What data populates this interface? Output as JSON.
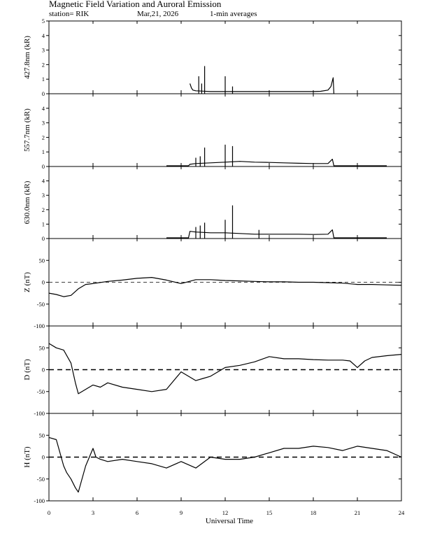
{
  "header": {
    "title": "Magnetic Field Variation and Auroral Emission",
    "station": "station= RIK",
    "date": "Mar,21, 2026",
    "averaging": "1-min averages"
  },
  "chart_data": [
    {
      "type": "line",
      "ylabel": "427.8nm (kR)",
      "ylim": [
        0,
        5
      ],
      "yticks": [
        "0",
        "1",
        "2",
        "3",
        "4",
        "5"
      ],
      "x": [
        9.6,
        9.7,
        9.8,
        10.0,
        10.5,
        11.0,
        12.0,
        13.0,
        14.0,
        15.0,
        16.0,
        17.0,
        18.0,
        18.5,
        19.0,
        19.2,
        19.35,
        19.4
      ],
      "values": [
        0.7,
        0.4,
        0.25,
        0.2,
        0.18,
        0.15,
        0.15,
        0.15,
        0.15,
        0.15,
        0.15,
        0.15,
        0.15,
        0.17,
        0.25,
        0.5,
        1.1,
        0.0
      ],
      "spikes": [
        [
          10.2,
          1.2
        ],
        [
          10.4,
          0.7
        ],
        [
          10.6,
          1.9
        ],
        [
          12.0,
          1.2
        ],
        [
          12.5,
          0.5
        ]
      ]
    },
    {
      "type": "line",
      "ylabel": "557.7nm (kR)",
      "ylim": [
        0,
        5
      ],
      "yticks": [
        "0",
        "1",
        "2",
        "3",
        "4"
      ],
      "x": [
        8.0,
        9.5,
        9.6,
        10.0,
        11.0,
        12.0,
        13.0,
        14.0,
        15.0,
        16.0,
        17.0,
        18.0,
        19.0,
        19.3,
        19.4,
        23.0
      ],
      "values": [
        0.05,
        0.05,
        0.15,
        0.2,
        0.25,
        0.3,
        0.35,
        0.3,
        0.28,
        0.25,
        0.22,
        0.2,
        0.2,
        0.5,
        0.05,
        0.05
      ],
      "spikes": [
        [
          10.0,
          0.6
        ],
        [
          10.3,
          0.7
        ],
        [
          10.6,
          1.3
        ],
        [
          12.0,
          1.5
        ],
        [
          12.5,
          1.4
        ]
      ]
    },
    {
      "type": "line",
      "ylabel": "630.0nm (kR)",
      "ylim": [
        0,
        5
      ],
      "yticks": [
        "0",
        "1",
        "2",
        "3",
        "4"
      ],
      "x": [
        8.0,
        9.5,
        9.6,
        10.0,
        11.0,
        12.0,
        13.0,
        14.0,
        15.0,
        16.0,
        17.0,
        18.0,
        19.0,
        19.3,
        19.4,
        23.0
      ],
      "values": [
        0.05,
        0.05,
        0.5,
        0.45,
        0.4,
        0.4,
        0.35,
        0.3,
        0.3,
        0.3,
        0.3,
        0.28,
        0.3,
        0.6,
        0.05,
        0.05
      ],
      "spikes": [
        [
          10.0,
          0.8
        ],
        [
          10.3,
          0.9
        ],
        [
          10.6,
          1.1
        ],
        [
          12.0,
          1.3
        ],
        [
          12.5,
          2.3
        ],
        [
          14.3,
          0.6
        ]
      ]
    },
    {
      "type": "line",
      "ylabel": "Z (nT)",
      "ylim": [
        -100,
        100
      ],
      "yticks": [
        "50",
        "0",
        "-50",
        "-100"
      ],
      "zero_line": "dashed",
      "x": [
        0,
        0.5,
        1.0,
        1.5,
        2.0,
        2.5,
        3.0,
        4.0,
        5.0,
        6.0,
        7.0,
        8.0,
        9.0,
        10.0,
        11.0,
        12.0,
        13.0,
        14.0,
        15.0,
        16.0,
        17.0,
        18.0,
        19.0,
        20.0,
        21.0,
        22.0,
        23.0,
        24.0
      ],
      "values": [
        -25,
        -28,
        -33,
        -30,
        -15,
        -5,
        -3,
        2,
        5,
        9,
        11,
        5,
        -3,
        6,
        6,
        4,
        3,
        2,
        1,
        1,
        0,
        0,
        -1,
        -2,
        -5,
        -5,
        -6,
        -7
      ]
    },
    {
      "type": "line",
      "ylabel": "D (nT)",
      "ylim": [
        -100,
        100
      ],
      "yticks": [
        "50",
        "0",
        "-50",
        "-100"
      ],
      "zero_line": "dashed",
      "x": [
        0,
        0.5,
        1.0,
        1.5,
        1.8,
        2.0,
        2.5,
        3.0,
        3.5,
        4.0,
        5.0,
        6.0,
        7.0,
        8.0,
        9.0,
        9.5,
        10.0,
        10.5,
        11.0,
        12.0,
        13.0,
        14.0,
        15.0,
        16.0,
        17.0,
        18.0,
        19.0,
        20.0,
        20.5,
        21.0,
        21.5,
        22.0,
        23.0,
        24.0
      ],
      "values": [
        60,
        50,
        45,
        15,
        -30,
        -55,
        -45,
        -35,
        -40,
        -30,
        -40,
        -45,
        -50,
        -45,
        -5,
        -15,
        -25,
        -20,
        -15,
        5,
        10,
        18,
        30,
        25,
        25,
        23,
        22,
        22,
        20,
        5,
        20,
        28,
        32,
        35
      ]
    },
    {
      "type": "line",
      "ylabel": "H (nT)",
      "ylim": [
        -100,
        100
      ],
      "yticks": [
        "50",
        "0",
        "-50",
        "-100"
      ],
      "zero_line": "dashed",
      "x": [
        0,
        0.5,
        1.0,
        1.2,
        1.5,
        1.8,
        2.0,
        2.5,
        3.0,
        3.2,
        3.5,
        4.0,
        5.0,
        6.0,
        7.0,
        8.0,
        9.0,
        10.0,
        11.0,
        12.0,
        13.0,
        14.0,
        15.0,
        16.0,
        17.0,
        18.0,
        19.0,
        20.0,
        21.0,
        22.0,
        23.0,
        24.0
      ],
      "values": [
        45,
        40,
        -20,
        -35,
        -50,
        -70,
        -80,
        -20,
        20,
        0,
        -5,
        -10,
        -5,
        -10,
        -15,
        -25,
        -10,
        -25,
        0,
        -5,
        -5,
        0,
        10,
        20,
        20,
        25,
        22,
        15,
        25,
        20,
        15,
        0
      ]
    }
  ],
  "x_axis": {
    "label": "Universal Time",
    "xlim": [
      0,
      24
    ],
    "ticks": [
      "0",
      "3",
      "6",
      "9",
      "12",
      "15",
      "18",
      "21",
      "24"
    ]
  }
}
